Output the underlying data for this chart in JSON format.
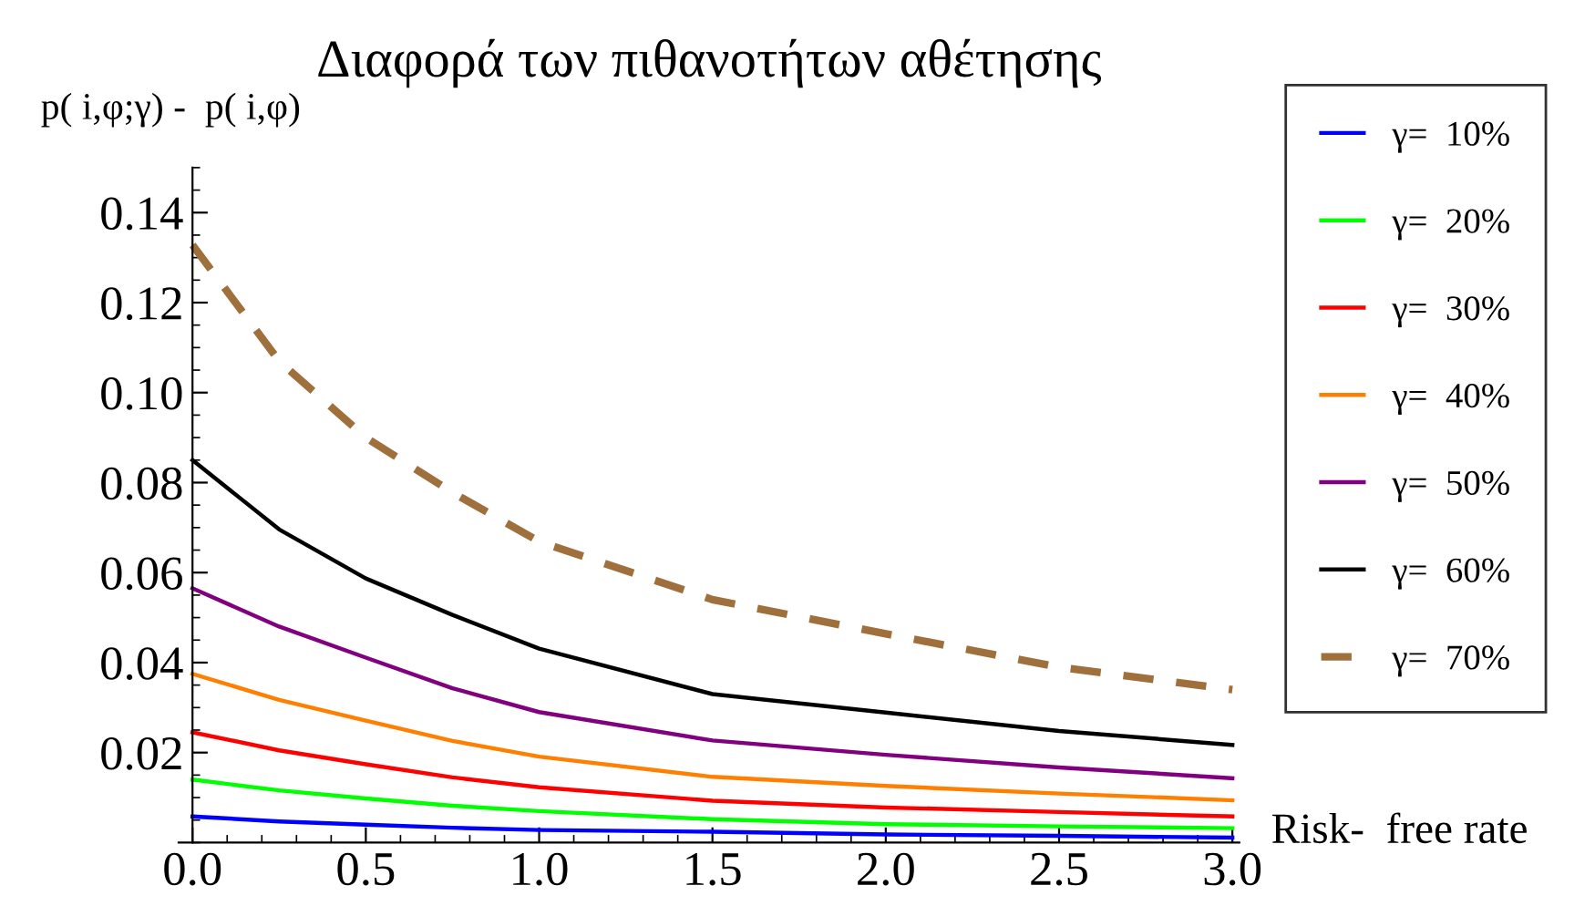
{
  "chart_data": {
    "type": "line",
    "title": "Διαφορά των πιθανοτήτων αθέτησης",
    "ylabel": "p( i,φ;γ) -  p( i,φ)",
    "xlabel": "Risk-  free rate",
    "x": [
      0,
      0.25,
      0.5,
      0.75,
      1.0,
      1.5,
      2.0,
      2.5,
      3.0
    ],
    "series": [
      {
        "name": "γ=  10%",
        "color": "#0000ff",
        "values": [
          0.0058,
          0.0047,
          0.004,
          0.0033,
          0.0028,
          0.0024,
          0.0018,
          0.0015,
          0.0011
        ]
      },
      {
        "name": "γ=  20%",
        "color": "#00ff00",
        "values": [
          0.014,
          0.0116,
          0.0098,
          0.0082,
          0.007,
          0.0052,
          0.0041,
          0.0036,
          0.0032
        ]
      },
      {
        "name": "γ=  30%",
        "color": "#ff0000",
        "values": [
          0.0245,
          0.0205,
          0.0174,
          0.0145,
          0.0123,
          0.0093,
          0.0078,
          0.0068,
          0.0058
        ]
      },
      {
        "name": "γ=  40%",
        "color": "#ff8000",
        "values": [
          0.0375,
          0.0317,
          0.0271,
          0.0226,
          0.0191,
          0.0146,
          0.0126,
          0.0109,
          0.0094
        ]
      },
      {
        "name": "γ=  50%",
        "color": "#800080",
        "values": [
          0.0565,
          0.048,
          0.0411,
          0.0343,
          0.029,
          0.0227,
          0.0195,
          0.0167,
          0.0143
        ]
      },
      {
        "name": "γ=  60%",
        "color": "#000000",
        "values": [
          0.085,
          0.0696,
          0.0587,
          0.0506,
          0.0431,
          0.033,
          0.0289,
          0.0248,
          0.0217
        ]
      },
      {
        "name": "γ=  70%",
        "color": "#a0703c",
        "line_style": "dashed",
        "values": [
          0.1328,
          0.107,
          0.09,
          0.0778,
          0.0669,
          0.054,
          0.0464,
          0.039,
          0.034
        ]
      }
    ],
    "xlim": [
      -0.04,
      3.02
    ],
    "ylim": [
      0,
      0.15
    ],
    "xticks": [
      {
        "value": 0,
        "label": "0.0"
      },
      0.5,
      {
        "value": 1,
        "label": "1.0"
      },
      1.5,
      {
        "value": 2,
        "label": "2.0"
      },
      2.5,
      {
        "value": 3,
        "label": "3.0"
      }
    ],
    "yticks": [
      0.02,
      0.04,
      0.06,
      0.08,
      {
        "value": 0.1,
        "label": "0.10"
      },
      0.12,
      0.14
    ],
    "grid": false,
    "legend": "right",
    "line_style": "solid",
    "marker": "none"
  }
}
